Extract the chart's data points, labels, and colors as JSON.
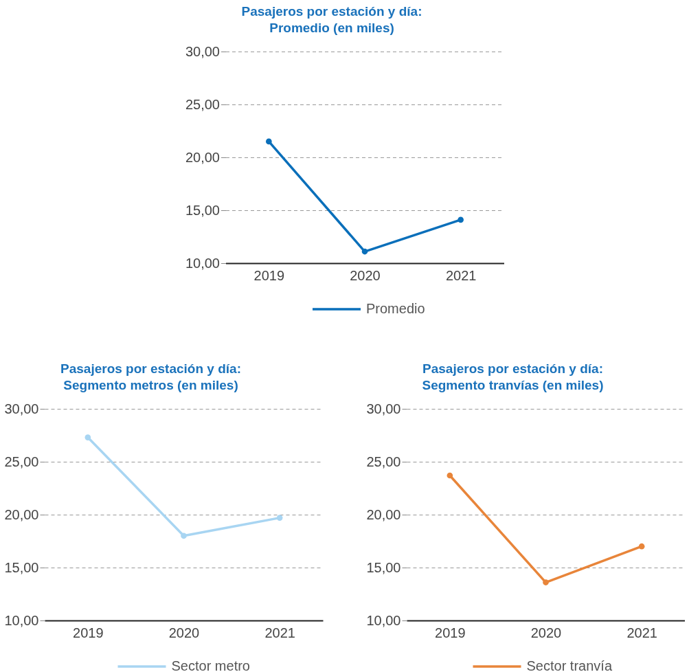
{
  "chart_data": [
    {
      "type": "line",
      "title": "Pasajeros por estación y día:\nPromedio (en miles)",
      "categories": [
        "2019",
        "2020",
        "2021"
      ],
      "series": [
        {
          "name": "Promedio",
          "color": "#0a6fba",
          "values": [
            21.5,
            11.1,
            14.1
          ]
        }
      ],
      "ylim": [
        10,
        30
      ],
      "yticks": [
        {
          "value": 10,
          "label": "10,00"
        },
        {
          "value": 15,
          "label": "15,00"
        },
        {
          "value": 20,
          "label": "20,00"
        },
        {
          "value": 25,
          "label": "25,00"
        },
        {
          "value": 30,
          "label": "30,00"
        }
      ],
      "grid": "y",
      "legend": "bottom",
      "marker": "circle",
      "line_style": "solid"
    },
    {
      "type": "line",
      "title": "Pasajeros por estación y día:\nSegmento metros (en miles)",
      "categories": [
        "2019",
        "2020",
        "2021"
      ],
      "series": [
        {
          "name": "Sector metro",
          "color": "#a8d5f2",
          "values": [
            27.3,
            18.0,
            19.7
          ]
        }
      ],
      "ylim": [
        10,
        30
      ],
      "yticks": [
        {
          "value": 10,
          "label": "10,00"
        },
        {
          "value": 15,
          "label": "15,00"
        },
        {
          "value": 20,
          "label": "20,00"
        },
        {
          "value": 25,
          "label": "25,00"
        },
        {
          "value": 30,
          "label": "30,00"
        }
      ],
      "grid": "y",
      "legend": "bottom",
      "marker": "circle",
      "line_style": "solid"
    },
    {
      "type": "line",
      "title": "Pasajeros por estación y día:\nSegmento tranvías (en miles)",
      "categories": [
        "2019",
        "2020",
        "2021"
      ],
      "series": [
        {
          "name": "Sector tranvía",
          "color": "#e8853a",
          "values": [
            23.7,
            13.6,
            17.0
          ]
        }
      ],
      "ylim": [
        10,
        30
      ],
      "yticks": [
        {
          "value": 10,
          "label": "10,00"
        },
        {
          "value": 15,
          "label": "15,00"
        },
        {
          "value": 20,
          "label": "20,00"
        },
        {
          "value": 25,
          "label": "25,00"
        },
        {
          "value": 30,
          "label": "30,00"
        }
      ],
      "grid": "y",
      "legend": "bottom",
      "marker": "circle",
      "line_style": "solid"
    }
  ]
}
